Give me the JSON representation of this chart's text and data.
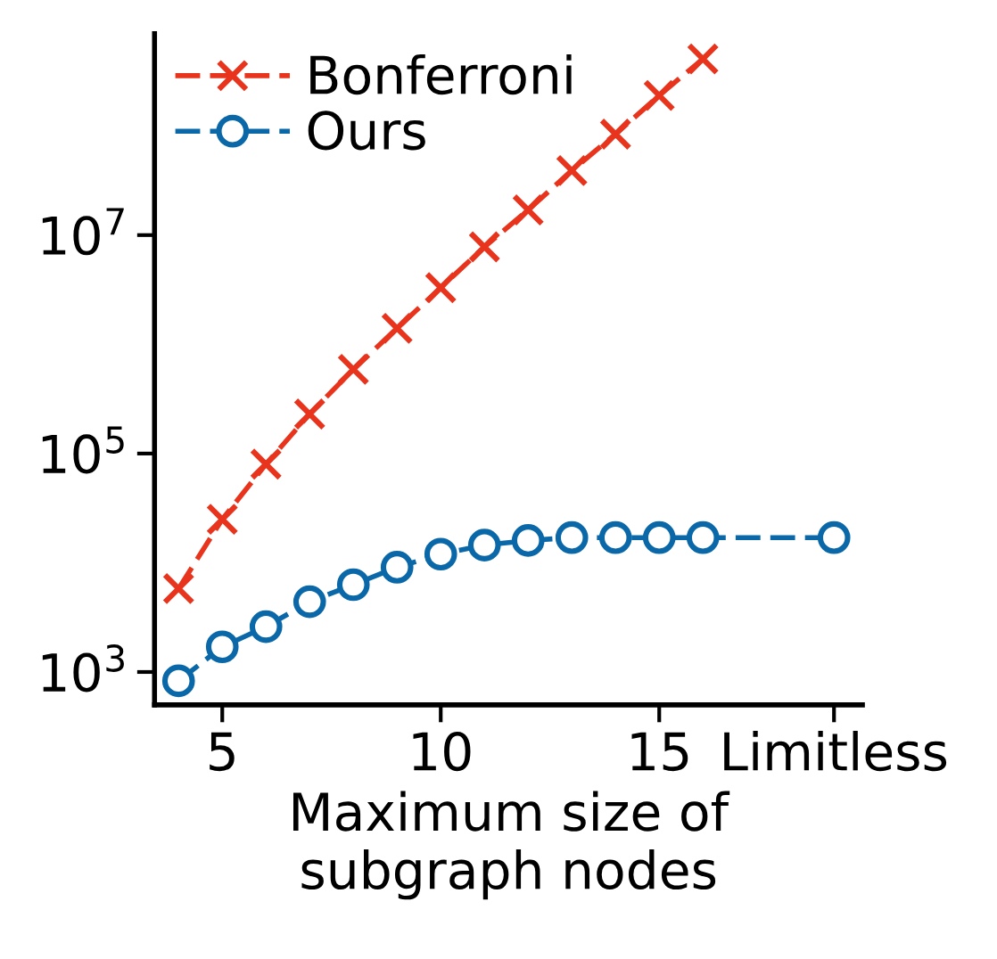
{
  "chart_data": {
    "type": "line",
    "xlabel": "Maximum size of\nsubgraph nodes",
    "xlim": [
      3.45,
      19.65
    ],
    "xticks": [
      5,
      10,
      15,
      {
        "value": 19,
        "label": "Limitless"
      }
    ],
    "ylim": [
      500,
      700000000
    ],
    "yticks": [
      {
        "value": 1000,
        "label": "10$^{3}$"
      },
      {
        "value": 100000,
        "label": "10$^{5}$"
      },
      {
        "value": 10000000,
        "label": "10$^{7}$"
      }
    ],
    "log": true,
    "grid": false,
    "legend": "top left",
    "line_style": "dashed",
    "series": [
      {
        "name": "Bonferroni",
        "color": "#e8341c",
        "marker": "cross",
        "x": [
          4,
          5,
          6,
          7,
          8,
          9,
          10,
          11,
          12,
          13,
          14,
          15,
          16
        ],
        "values": [
          5800,
          25000,
          80000,
          230000,
          590000,
          1400000,
          3300000,
          7800000,
          17000000,
          39000000,
          84000000,
          190000000,
          410000000
        ]
      },
      {
        "name": "Ours",
        "color": "#0a68a8",
        "marker": "circle",
        "x": [
          4,
          5,
          6,
          7,
          8,
          9,
          10,
          11,
          12,
          13,
          14,
          15,
          16,
          19
        ],
        "values": [
          830,
          1700,
          2600,
          4400,
          6300,
          9100,
          12000,
          14500,
          16000,
          17000,
          17000,
          17000,
          17000,
          17000
        ]
      }
    ]
  }
}
